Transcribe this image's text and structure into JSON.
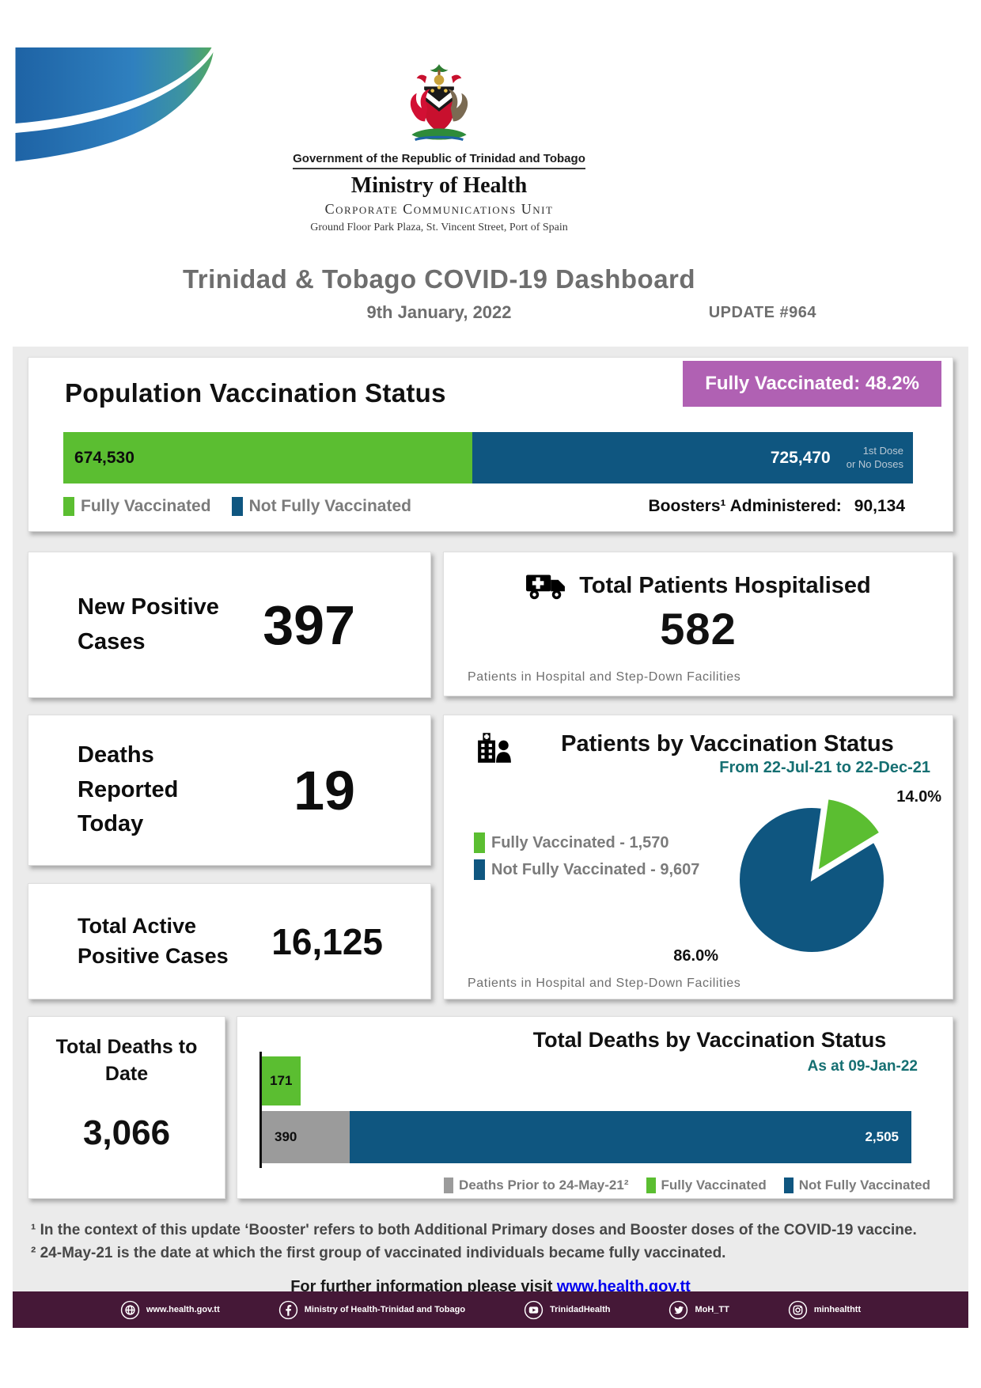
{
  "colors": {
    "green": "#5bbe31",
    "blue": "#0f5680",
    "purple": "#b061b3",
    "teal": "#156f72",
    "grayBar": "#9b9b9b",
    "footerBg": "#451837",
    "titleGray": "#6e6e6e",
    "legendGray": "#7b7b7b",
    "link": "#0000ee"
  },
  "header": {
    "gov_line": "Government of the Republic of Trinidad and Tobago",
    "ministry": "Ministry of Health",
    "unit": "Corporate Communications Unit",
    "address": "Ground Floor Park Plaza, St. Vincent Street, Port of Spain",
    "title": "Trinidad & Tobago COVID-19 Dashboard",
    "date": "9th January, 2022",
    "update": "UPDATE #964"
  },
  "vaccination": {
    "title": "Population Vaccination Status",
    "badge": "Fully Vaccinated: 48.2%",
    "fully_value": "674,530",
    "not_fully_value": "725,470",
    "note_line1": "1st Dose",
    "note_line2": "or No Doses",
    "legend": [
      "Fully Vaccinated",
      "Not Fully Vaccinated"
    ],
    "boosters_label": "Boosters¹ Administered:",
    "boosters_value": "90,134"
  },
  "stats": {
    "new_cases_label": "New Positive Cases",
    "new_cases_value": "397",
    "deaths_today_label": "Deaths Reported Today",
    "deaths_today_value": "19",
    "active_label": "Total Active Positive Cases",
    "active_value": "16,125",
    "hosp_title": "Total Patients Hospitalised",
    "hosp_value": "582",
    "hosp_note": "Patients in Hospital and Step-Down Facilities",
    "total_deaths_label": "Total Deaths to Date",
    "total_deaths_value": "3,066"
  },
  "chart_data": [
    {
      "type": "pie",
      "title": "Patients by Vaccination Status",
      "subtitle": "From 22-Jul-21 to 22-Dec-21",
      "labels": [
        "Fully Vaccinated",
        "Not Fully Vaccinated"
      ],
      "values": [
        1570,
        9607
      ],
      "percents": [
        14.0,
        86.0
      ],
      "pct_labels": [
        "14.0%",
        "86.0%"
      ],
      "legend_labels": [
        "Fully Vaccinated - 1,570",
        "Not Fully Vaccinated - 9,607"
      ],
      "colors": [
        "#5bbe31",
        "#0f5680"
      ],
      "exploded_slice": 0,
      "legend_position": "left",
      "note": "Patients in Hospital and Step-Down Facilities"
    },
    {
      "type": "bar",
      "title": "Total Deaths by Vaccination Status",
      "subtitle": "As at 09-Jan-22",
      "orientation": "horizontal",
      "rows": [
        {
          "segments": [
            {
              "name": "Fully Vaccinated",
              "value": 171,
              "label": "171",
              "color": "#5bbe31"
            }
          ]
        },
        {
          "segments": [
            {
              "name": "Deaths Prior to 24-May-21²",
              "value": 390,
              "label": "390",
              "color": "#9b9b9b"
            },
            {
              "name": "Not Fully Vaccinated",
              "value": 2505,
              "label": "2,505",
              "color": "#0f5680"
            }
          ]
        }
      ],
      "legend": [
        "Deaths Prior to 24-May-21²",
        "Fully Vaccinated",
        "Not Fully Vaccinated"
      ],
      "xmax": 2895
    },
    {
      "type": "bar",
      "title": "Population Vaccination Status",
      "stacked": true,
      "segments": [
        {
          "name": "Fully Vaccinated",
          "value": 674530,
          "color": "#5bbe31"
        },
        {
          "name": "Not Fully Vaccinated (1st Dose or No Doses)",
          "value": 725470,
          "color": "#0f5680"
        }
      ]
    }
  ],
  "footnotes": [
    "¹ In the context of this update ‘Booster' refers to both Additional Primary doses and Booster doses of the COVID-19 vaccine.",
    "² 24-May-21 is the date at which the first group of vaccinated individuals became fully vaccinated."
  ],
  "info": {
    "text": "For further information please visit",
    "link": "www.health.gov.tt"
  },
  "footer": {
    "items": [
      {
        "icon": "globe-icon",
        "label": "www.health.gov.tt"
      },
      {
        "icon": "facebook-icon",
        "label": "Ministry of Health-Trinidad and Tobago"
      },
      {
        "icon": "youtube-icon",
        "label": "TrinidadHealth"
      },
      {
        "icon": "twitter-icon",
        "label": "MoH_TT"
      },
      {
        "icon": "instagram-icon",
        "label": "minhealthtt"
      }
    ]
  }
}
